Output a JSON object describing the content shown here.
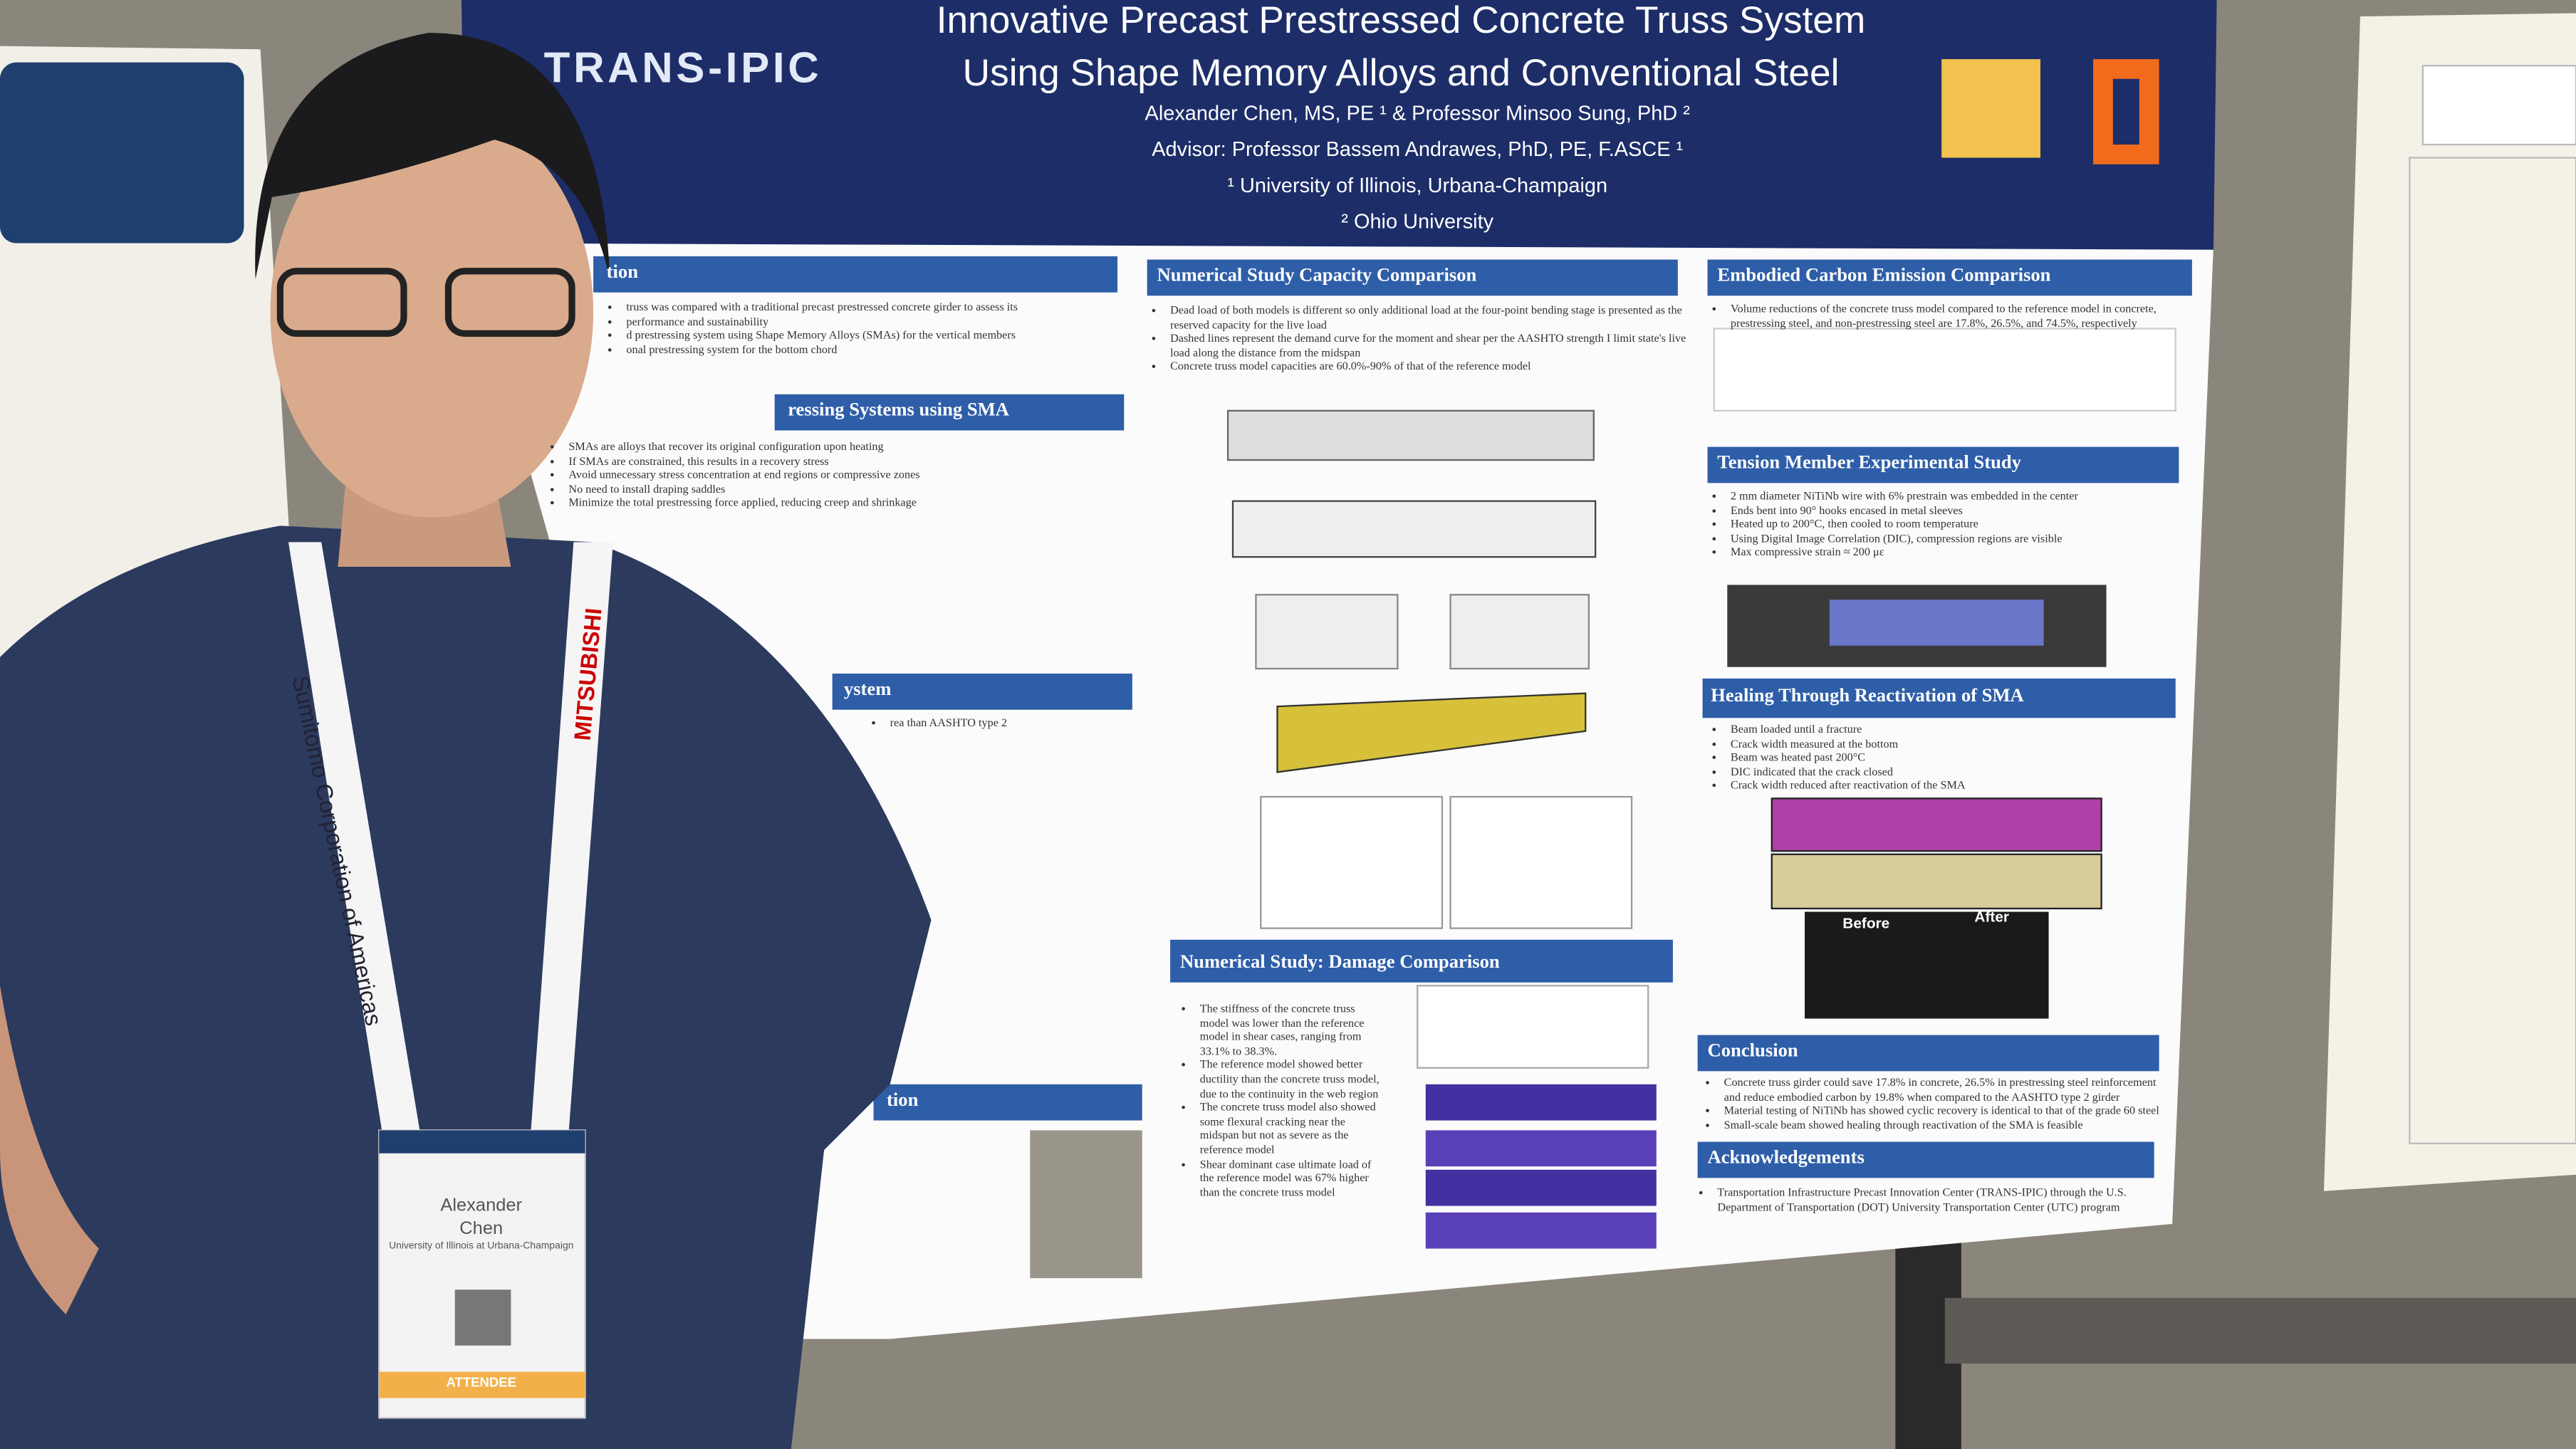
{
  "poster": {
    "logo": "TRANS-IPIC",
    "title_lines": [
      "Innovative Precast Prestressed Concrete Truss System",
      "Using Shape Memory Alloys and Conventional Steel"
    ],
    "authors": "Alexander Chen, MS, PE ¹ & Professor Minsoo Sung, PhD ²",
    "advisor": "Advisor: Professor Bassem Andrawes, PhD, PE, F.ASCE ¹",
    "affiliations": [
      "¹ University of Illinois, Urbana-Champaign",
      "² Ohio University"
    ],
    "left_sections": [
      {
        "heading": "tion",
        "bullets": [
          "truss was compared with a traditional precast prestressed concrete girder to assess its",
          "performance and sustainability",
          "d prestressing system using Shape Memory Alloys (SMAs) for the vertical members",
          "onal prestressing system for the bottom chord"
        ]
      },
      {
        "heading": "ressing Systems using SMA",
        "bullets": [
          "SMAs are alloys that recover its original configuration upon heating",
          "If SMAs are constrained, this results in a recovery stress",
          "Avoid unnecessary stress concentration at end regions or compressive zones",
          "No need to install draping saddles",
          "Minimize the total prestressing force applied, reducing creep and shrinkage"
        ]
      },
      {
        "heading": "ystem",
        "bullets": [
          "rea than AASHTO type 2"
        ]
      },
      {
        "heading": "tion",
        "bullets": []
      }
    ],
    "middle_sections": [
      {
        "heading": "Numerical Study Capacity Comparison",
        "bullets": [
          "Dead load of both models is different so only additional load at the four-point bending stage is presented as the reserved capacity for the live load",
          "Dashed lines represent the demand curve for the moment and shear per the AASHTO strength I limit state's live load along the distance from the midspan",
          "Concrete truss model capacities are 60.0%-90% of that of the reference model"
        ]
      },
      {
        "heading": "Numerical Study: Damage Comparison",
        "bullets": [
          "The stiffness of the concrete truss model was lower than the reference model in shear cases, ranging from 33.1% to 38.3%.",
          "The reference model showed better ductility than the concrete truss model, due to the continuity in the web region",
          "The concrete truss model also showed some flexural cracking near the midspan but not as severe as the reference model",
          "Shear dominant case ultimate load of the reference model was 67% higher than the concrete truss model"
        ]
      }
    ],
    "right_sections": [
      {
        "heading": "Embodied Carbon Emission Comparison",
        "bullets": [
          "Volume reductions of the concrete truss model compared to the reference model in concrete, prestressing steel, and non-prestressing steel are 17.8%, 26.5%, and 74.5%, respectively"
        ]
      },
      {
        "heading": "Tension Member Experimental Study",
        "bullets": [
          "2 mm diameter NiTiNb wire with 6% prestrain was embedded in the center",
          "Ends bent into 90° hooks encased in metal sleeves",
          "Heated up to 200°C, then cooled to room temperature",
          "Using Digital Image Correlation (DIC), compression regions are visible",
          "Max compressive strain ≈ 200 με"
        ]
      },
      {
        "heading": "Healing Through Reactivation of SMA",
        "bullets": [
          "Beam loaded until a fracture",
          "Crack width measured at the bottom",
          "Beam was heated past 200°C",
          "DIC indicated that the crack closed",
          "Crack width reduced after reactivation of the SMA"
        ]
      },
      {
        "heading": "Conclusion",
        "bullets": [
          "Concrete truss girder could save 17.8% in concrete, 26.5% in prestressing steel reinforcement and reduce embodied carbon by 19.8% when compared to the AASHTO type 2 girder",
          "Material testing of NiTiNb has showed cyclic recovery is identical to that of the grade 60 steel",
          "Small-scale beam showed healing through reactivation of the SMA is feasible"
        ]
      },
      {
        "heading": "Acknowledgements",
        "bullets": [
          "Transportation Infrastructure Precast Innovation Center (TRANS-IPIC) through the U.S. Department of Transportation (DOT) University Transportation Center (UTC) program"
        ]
      }
    ],
    "photo_labels": [
      "Before",
      "After"
    ]
  },
  "badge": {
    "name_lines": [
      "Alexander",
      "Chen"
    ],
    "affiliation": "University of Illinois at Urbana-Champaign",
    "role": "ATTENDEE"
  },
  "lanyard": {
    "left": "Sumitomo Corporation of Americas",
    "right": "MITSUBISHI"
  }
}
